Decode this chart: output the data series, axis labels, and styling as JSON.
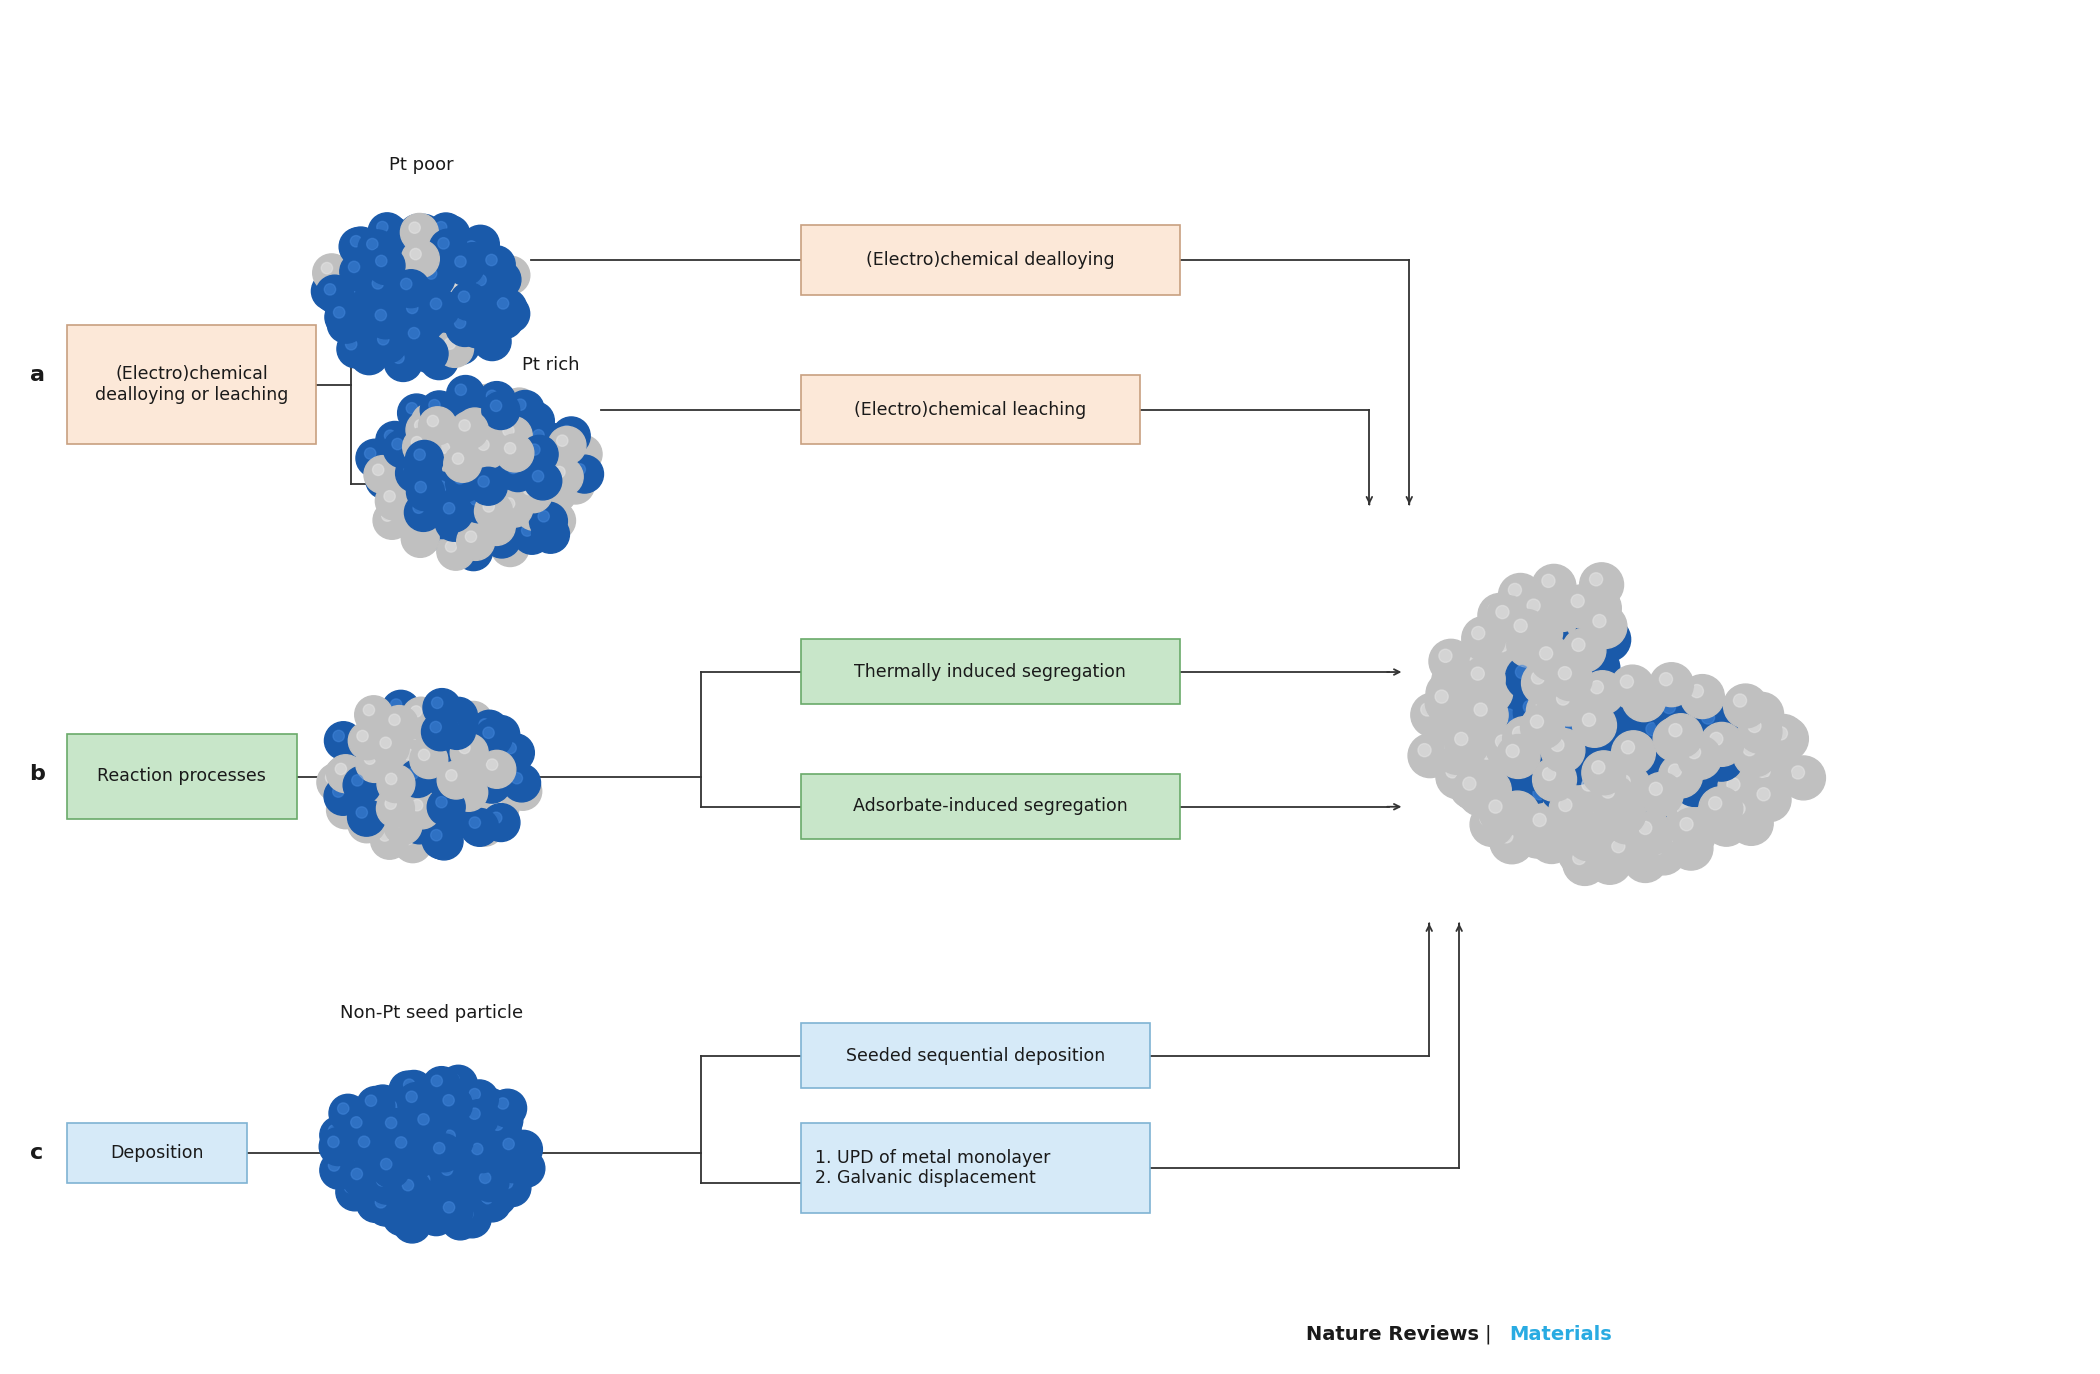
{
  "bg_color": "#ffffff",
  "fig_width": 21.0,
  "fig_height": 13.74,
  "label_a": "a",
  "label_b": "b",
  "label_c": "c",
  "box_a_text": "(Electro)chemical\ndealloying or leaching",
  "box_a_bg": "#fce8d8",
  "box_a_edge": "#c8a080",
  "box_b_text": "Reaction processes",
  "box_b_bg": "#c8e6c9",
  "box_b_edge": "#6aaa6a",
  "box_c_text": "Deposition",
  "box_c_bg": "#d6eaf8",
  "box_c_edge": "#7fb3d3",
  "box_dealloying_text": "(Electro)chemical dealloying",
  "box_dealloying_bg": "#fce8d8",
  "box_dealloying_edge": "#c8a080",
  "box_leaching_text": "(Electro)chemical leaching",
  "box_leaching_bg": "#fce8d8",
  "box_leaching_edge": "#c8a080",
  "box_thermal_text": "Thermally induced segregation",
  "box_thermal_bg": "#c8e6c9",
  "box_thermal_edge": "#6aaa6a",
  "box_adsorbate_text": "Adsorbate-induced segregation",
  "box_adsorbate_bg": "#c8e6c9",
  "box_adsorbate_edge": "#6aaa6a",
  "box_seeded_text": "Seeded sequential deposition",
  "box_seeded_bg": "#d6eaf8",
  "box_seeded_edge": "#7fb3d3",
  "box_upd_text": "1. UPD of metal monolayer\n2. Galvanic displacement",
  "box_upd_bg": "#d6eaf8",
  "box_upd_edge": "#7fb3d3",
  "label_pt_poor": "Pt poor",
  "label_pt_rich": "Pt rich",
  "label_non_pt": "Non-Pt seed particle",
  "nature_reviews_color": "#1a1a1a",
  "materials_color": "#29abe2",
  "blue_color": "#1a5aaa",
  "silver_color": "#c0c0c0",
  "dark_blue": "#003580"
}
